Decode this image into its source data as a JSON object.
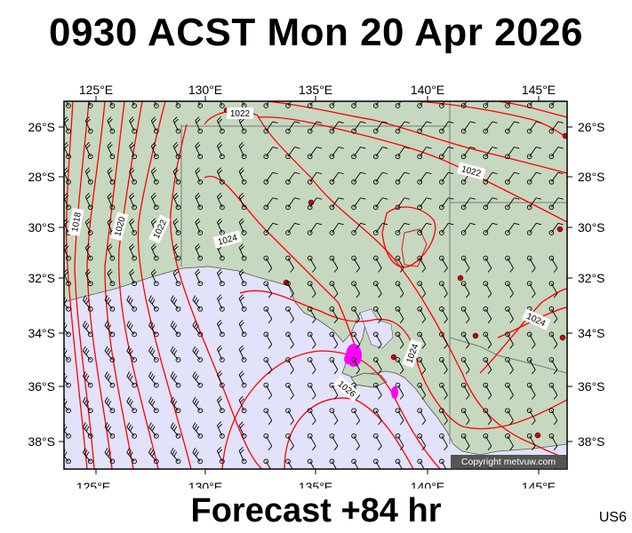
{
  "header": {
    "title": "0930 ACST Mon 20 Apr 2026"
  },
  "footer": {
    "forecast": "Forecast +84 hr",
    "model_code": "US6"
  },
  "map": {
    "copyright": "Copyright metvuw.com",
    "lon_labels": [
      "125°E",
      "130°E",
      "135°E",
      "140°E",
      "145°E"
    ],
    "lat_labels": [
      "26°S",
      "28°S",
      "30°S",
      "32°S",
      "34°S",
      "36°S",
      "38°S"
    ],
    "isobar_labels": [
      "1022",
      "1022",
      "1024",
      "1022",
      "1020",
      "1018",
      "1024",
      "1024",
      "1024",
      "1026"
    ],
    "colors": {
      "land": "#c6d8bf",
      "sea": "#e2e2fa",
      "isobar": "#ff0000",
      "rain": "#ff00ff",
      "border": "#000000"
    }
  }
}
